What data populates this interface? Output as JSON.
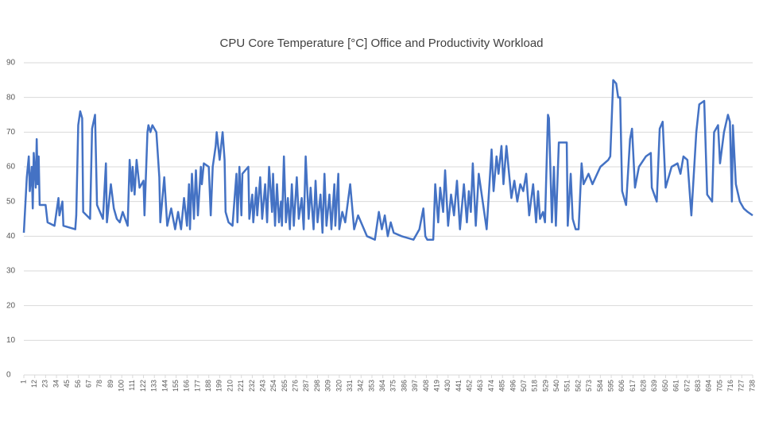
{
  "chart_data": {
    "type": "line",
    "title": "CPU Core Temperature [°C] Office and Productivity Workload",
    "x": [
      1,
      4,
      6,
      7,
      9,
      10,
      11,
      13,
      14,
      15,
      16,
      17,
      23,
      25,
      32,
      33,
      36,
      37,
      40,
      41,
      53,
      54,
      56,
      58,
      60,
      61,
      68,
      70,
      73,
      75,
      81,
      84,
      85,
      89,
      92,
      95,
      98,
      101,
      106,
      108,
      110,
      111,
      113,
      115,
      118,
      122,
      123,
      126,
      127,
      129,
      131,
      135,
      138,
      139,
      143,
      146,
      150,
      154,
      157,
      160,
      163,
      166,
      168,
      169,
      171,
      173,
      175,
      177,
      180,
      181,
      183,
      188,
      190,
      192,
      195,
      196,
      199,
      202,
      204,
      205,
      208,
      212,
      216,
      217,
      219,
      221,
      222,
      228,
      229,
      232,
      233,
      236,
      237,
      240,
      242,
      245,
      247,
      249,
      252,
      253,
      255,
      257,
      259,
      261,
      262,
      264,
      266,
      268,
      270,
      272,
      274,
      277,
      279,
      282,
      284,
      286,
      289,
      291,
      294,
      296,
      298,
      301,
      303,
      305,
      307,
      310,
      312,
      315,
      316,
      319,
      320,
      323,
      326,
      331,
      335,
      339,
      348,
      356,
      360,
      363,
      366,
      369,
      372,
      375,
      383,
      395,
      401,
      405,
      407,
      409,
      415,
      417,
      420,
      422,
      425,
      427,
      430,
      433,
      436,
      439,
      442,
      446,
      449,
      451,
      453,
      455,
      458,
      461,
      469,
      474,
      476,
      479,
      481,
      484,
      486,
      489,
      494,
      497,
      500,
      503,
      506,
      509,
      512,
      516,
      519,
      521,
      523,
      526,
      528,
      531,
      532,
      535,
      537,
      539,
      542,
      550,
      551,
      554,
      556,
      559,
      562,
      565,
      567,
      572,
      576,
      584,
      592,
      594,
      597,
      600,
      602,
      604,
      606,
      610,
      614,
      616,
      619,
      623,
      630,
      635,
      636,
      641,
      644,
      647,
      650,
      656,
      662,
      665,
      668,
      672,
      676,
      681,
      684,
      689,
      692,
      697,
      699,
      703,
      705,
      709,
      713,
      715,
      717,
      718,
      721,
      725,
      729,
      733,
      738
    ],
    "values": [
      41,
      57,
      63,
      53,
      60,
      48,
      64,
      54,
      68,
      55,
      63,
      49,
      49,
      44,
      43,
      45,
      51,
      46,
      50,
      43,
      42,
      46,
      72,
      76,
      74,
      47,
      45,
      71,
      75,
      49,
      45,
      61,
      44,
      55,
      48,
      45,
      44,
      47,
      43,
      62,
      53,
      60,
      52,
      62,
      54,
      56,
      46,
      70,
      72,
      70,
      72,
      70,
      57,
      44,
      57,
      43,
      48,
      42,
      47,
      42,
      51,
      43,
      55,
      42,
      58,
      45,
      59,
      46,
      60,
      55,
      61,
      60,
      46,
      60,
      66,
      70,
      62,
      70,
      62,
      47,
      44,
      43,
      58,
      44,
      60,
      46,
      58,
      60,
      45,
      52,
      44,
      54,
      46,
      57,
      45,
      55,
      44,
      60,
      47,
      58,
      43,
      55,
      44,
      50,
      43,
      63,
      44,
      51,
      42,
      55,
      43,
      57,
      45,
      51,
      42,
      63,
      45,
      54,
      42,
      56,
      44,
      52,
      41,
      58,
      43,
      52,
      42,
      55,
      43,
      58,
      42,
      47,
      44,
      55,
      42,
      46,
      40,
      39,
      47,
      42,
      46,
      40,
      44,
      41,
      40,
      39,
      42,
      48,
      40,
      39,
      39,
      55,
      44,
      54,
      47,
      59,
      43,
      52,
      46,
      56,
      42,
      55,
      44,
      53,
      47,
      61,
      43,
      58,
      42,
      65,
      53,
      63,
      58,
      66,
      55,
      66,
      51,
      56,
      50,
      55,
      53,
      58,
      46,
      55,
      44,
      53,
      45,
      47,
      44,
      75,
      74,
      44,
      60,
      43,
      67,
      67,
      43,
      58,
      45,
      42,
      42,
      61,
      55,
      58,
      55,
      60,
      62,
      63,
      85,
      84,
      80,
      80,
      53,
      49,
      68,
      71,
      54,
      60,
      63,
      64,
      54,
      50,
      71,
      73,
      54,
      60,
      61,
      58,
      63,
      62,
      46,
      70,
      78,
      79,
      52,
      50,
      70,
      72,
      61,
      70,
      75,
      73,
      50,
      72,
      55,
      50,
      48,
      47,
      46
    ],
    "color": "#4472c4",
    "xlim": [
      1,
      738
    ],
    "xticks": [
      1,
      12,
      23,
      34,
      45,
      56,
      67,
      78,
      89,
      100,
      111,
      122,
      133,
      144,
      155,
      166,
      177,
      188,
      199,
      210,
      221,
      232,
      243,
      254,
      265,
      276,
      287,
      298,
      309,
      320,
      331,
      342,
      353,
      364,
      375,
      386,
      397,
      408,
      419,
      430,
      441,
      452,
      463,
      474,
      485,
      496,
      507,
      518,
      529,
      540,
      551,
      562,
      573,
      584,
      595,
      606,
      617,
      628,
      639,
      650,
      661,
      672,
      683,
      694,
      705,
      716,
      727,
      738
    ],
    "ylim": [
      0,
      90
    ],
    "yticks": [
      0,
      10,
      20,
      30,
      40,
      50,
      60,
      70,
      80,
      90
    ],
    "grid": true
  }
}
